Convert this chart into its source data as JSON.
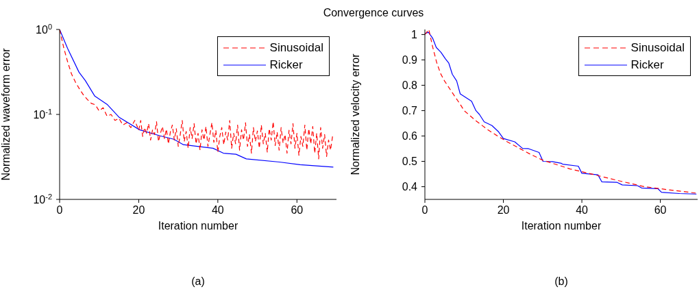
{
  "chart_data": [
    {
      "type": "line",
      "title": "Convergence curves",
      "xlabel": "Iteration number",
      "ylabel": "Normalized waveform error",
      "annotations": [
        "(a)"
      ],
      "xlim": [
        0,
        70
      ],
      "xticks": [
        0,
        20,
        40,
        60
      ],
      "ylim": [
        0.01,
        1
      ],
      "yticks": [
        {
          "value": 0.01,
          "label": "10$^{-2}$"
        },
        {
          "value": 0.1,
          "label": "10$^{-1}$"
        },
        {
          "value": 1,
          "label": "10$^{0}$"
        }
      ],
      "log": "y",
      "legend": "top right",
      "series": [
        {
          "name": "Sinusoidal",
          "color": "#ff0000",
          "line_style": "dashed",
          "x": [
            0,
            1,
            2,
            3,
            4,
            5,
            6,
            7,
            8,
            9,
            10,
            11,
            12,
            13,
            14,
            15,
            16,
            17,
            18,
            19,
            20,
            20.5,
            21,
            21.5,
            22,
            22.5,
            23,
            23.5,
            24,
            24.5,
            25,
            25.5,
            26,
            26.5,
            27,
            27.5,
            28,
            28.5,
            29,
            29.5,
            30,
            30.5,
            31,
            31.5,
            32,
            32.5,
            33,
            33.5,
            34,
            34.5,
            35,
            35.5,
            36,
            36.5,
            37,
            37.5,
            38,
            38.5,
            39,
            39.5,
            40,
            40.5,
            41,
            41.5,
            42,
            42.5,
            43,
            43.5,
            44,
            44.5,
            45,
            45.5,
            46,
            46.5,
            47,
            47.5,
            48,
            48.5,
            49,
            49.5,
            50,
            50.5,
            51,
            51.5,
            52,
            52.5,
            53,
            53.5,
            54,
            54.5,
            55,
            55.5,
            56,
            56.5,
            57,
            57.5,
            58,
            58.5,
            59,
            59.5,
            60,
            60.5,
            61,
            61.5,
            62,
            62.5,
            63,
            63.5,
            64,
            64.5,
            65,
            65.5,
            66,
            66.5,
            67,
            67.5,
            68,
            68.5,
            69
          ],
          "values": [
            1,
            0.62,
            0.42,
            0.3,
            0.24,
            0.2,
            0.17,
            0.15,
            0.135,
            0.13,
            0.11,
            0.12,
            0.095,
            0.1,
            0.085,
            0.09,
            0.075,
            0.08,
            0.07,
            0.085,
            0.065,
            0.085,
            0.055,
            0.07,
            0.06,
            0.078,
            0.05,
            0.066,
            0.058,
            0.082,
            0.048,
            0.06,
            0.072,
            0.052,
            0.067,
            0.045,
            0.062,
            0.075,
            0.05,
            0.068,
            0.042,
            0.058,
            0.085,
            0.048,
            0.063,
            0.04,
            0.07,
            0.052,
            0.078,
            0.045,
            0.06,
            0.038,
            0.066,
            0.05,
            0.072,
            0.042,
            0.058,
            0.08,
            0.047,
            0.065,
            0.036,
            0.055,
            0.07,
            0.044,
            0.062,
            0.05,
            0.085,
            0.04,
            0.06,
            0.045,
            0.075,
            0.038,
            0.066,
            0.05,
            0.08,
            0.042,
            0.058,
            0.035,
            0.07,
            0.048,
            0.064,
            0.04,
            0.075,
            0.045,
            0.06,
            0.036,
            0.068,
            0.05,
            0.082,
            0.043,
            0.062,
            0.038,
            0.07,
            0.046,
            0.058,
            0.035,
            0.065,
            0.045,
            0.078,
            0.04,
            0.06,
            0.033,
            0.055,
            0.042,
            0.075,
            0.038,
            0.068,
            0.045,
            0.072,
            0.035,
            0.06,
            0.03,
            0.07,
            0.04,
            0.058,
            0.032,
            0.05,
            0.038,
            0.055
          ]
        },
        {
          "name": "Ricker",
          "color": "#0000ff",
          "line_style": "solid",
          "x": [
            0,
            2,
            4.9,
            6.5,
            8.9,
            12.1,
            15,
            20.2,
            25.4,
            28.9,
            31.3,
            38.8,
            41.4,
            44.6,
            47.2,
            55.6,
            60.8,
            69.2
          ],
          "values": [
            1,
            0.6,
            0.314,
            0.25,
            0.164,
            0.13,
            0.093,
            0.066,
            0.056,
            0.051,
            0.044,
            0.04,
            0.035,
            0.034,
            0.03,
            0.0275,
            0.0256,
            0.024
          ]
        }
      ]
    },
    {
      "type": "line",
      "xlabel": "Iteration number",
      "ylabel": "Normalized velocity error",
      "annotations": [
        "(b)"
      ],
      "xlim": [
        0,
        69.5
      ],
      "xticks": [
        0,
        20,
        40,
        60
      ],
      "ylim": [
        0.35,
        1.02
      ],
      "yticks": [
        0.4,
        0.5,
        0.6,
        0.7,
        0.8,
        0.9,
        1
      ],
      "legend": "top right",
      "series": [
        {
          "name": "Sinusoidal",
          "color": "#ff0000",
          "line_style": "dashed",
          "x": [
            0,
            1,
            2,
            3,
            4,
            5,
            7.5,
            9,
            10,
            13,
            16,
            18,
            21,
            24,
            27,
            30,
            34,
            37,
            43,
            49,
            56,
            63,
            69
          ],
          "values": [
            1,
            1.02,
            0.95,
            0.89,
            0.846,
            0.817,
            0.759,
            0.725,
            0.7,
            0.66,
            0.625,
            0.605,
            0.577,
            0.552,
            0.527,
            0.505,
            0.485,
            0.47,
            0.448,
            0.425,
            0.4,
            0.386,
            0.375
          ]
        },
        {
          "name": "Ricker",
          "color": "#0000ff",
          "line_style": "solid",
          "x": [
            0,
            0.9,
            2,
            2.9,
            4.1,
            5.2,
            6.1,
            7,
            8.1,
            9,
            11.9,
            13,
            13.9,
            15.1,
            17.1,
            18.8,
            20,
            22.9,
            24.9,
            26.4,
            29.1,
            30.1,
            32.5,
            34.8,
            35.1,
            39.1,
            40,
            44.1,
            45.1,
            49,
            50.3,
            54.2,
            55.2,
            59.4,
            60.3,
            64.9,
            69.2
          ],
          "values": [
            1.004,
            1.009,
            0.985,
            0.949,
            0.93,
            0.905,
            0.887,
            0.843,
            0.817,
            0.766,
            0.737,
            0.7,
            0.685,
            0.656,
            0.641,
            0.616,
            0.59,
            0.577,
            0.551,
            0.55,
            0.535,
            0.5,
            0.499,
            0.492,
            0.489,
            0.481,
            0.453,
            0.447,
            0.419,
            0.417,
            0.407,
            0.404,
            0.395,
            0.392,
            0.378,
            0.373,
            0.371
          ]
        }
      ]
    }
  ]
}
